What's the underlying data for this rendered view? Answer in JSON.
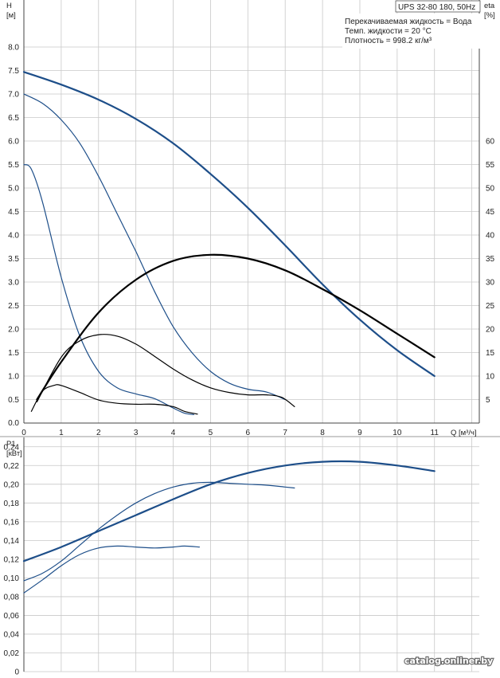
{
  "title": "UPS 32-80 180, 50Hz",
  "info_lines": [
    "Перекачиваемая жидкость = Вода",
    "Темп. жидкости = 20 °C",
    "Плотность = 998.2 кг/м³"
  ],
  "watermark": "catalog.onliner.by",
  "chart_data": [
    {
      "type": "line",
      "title": "UPS 32-80 180, 50Hz",
      "ylabel": "H",
      "yunit": "[м]",
      "y2label": "eta",
      "y2unit": "[%]",
      "xlabel": "Q",
      "xunit": "[м³/ч]",
      "xlim": [
        0,
        12.2
      ],
      "ylim": [
        0,
        8.0
      ],
      "y2lim": [
        0,
        80
      ],
      "grid": true,
      "xticks": [
        "0",
        "1",
        "2",
        "3",
        "4",
        "5",
        "6",
        "7",
        "8",
        "9",
        "10",
        "11"
      ],
      "yticks": [
        "0.0",
        "0.5",
        "1.0",
        "1.5",
        "2.0",
        "2.5",
        "3.0",
        "3.5",
        "4.0",
        "4.5",
        "5.0",
        "5.5",
        "6.0",
        "6.5",
        "7.0",
        "7.5",
        "8.0"
      ],
      "y2ticks": [
        "5",
        "10",
        "15",
        "20",
        "25",
        "30",
        "35",
        "40",
        "45",
        "50",
        "55",
        "60"
      ],
      "series": [
        {
          "axis": "H",
          "color": "#1d4e89",
          "width": 2.2,
          "x": [
            0,
            1,
            2,
            3,
            4,
            5,
            6,
            7,
            8,
            9,
            10,
            11
          ],
          "y": [
            7.47,
            7.2,
            6.88,
            6.47,
            5.95,
            5.3,
            4.58,
            3.78,
            2.95,
            2.2,
            1.55,
            1.0
          ]
        },
        {
          "axis": "H",
          "color": "#1d4e89",
          "width": 1.2,
          "x": [
            0,
            0.5,
            1,
            1.5,
            2,
            2.5,
            3,
            3.5,
            4,
            4.5,
            5,
            5.5,
            6,
            6.5,
            7.0
          ],
          "y": [
            7.0,
            6.8,
            6.45,
            5.95,
            5.25,
            4.45,
            3.65,
            2.8,
            2.05,
            1.5,
            1.1,
            0.85,
            0.72,
            0.66,
            0.5
          ]
        },
        {
          "axis": "H",
          "color": "#1d4e89",
          "width": 1.2,
          "x": [
            0,
            0.2,
            0.5,
            1,
            1.5,
            2,
            2.5,
            3,
            3.5,
            4,
            4.3,
            4.55
          ],
          "y": [
            5.5,
            5.4,
            4.7,
            3.1,
            1.85,
            1.1,
            0.75,
            0.62,
            0.52,
            0.32,
            0.21,
            0.18
          ]
        },
        {
          "axis": "eta",
          "color": "#000000",
          "width": 2.2,
          "x": [
            0.35,
            1,
            2,
            3,
            4,
            5,
            6,
            7,
            8,
            9,
            10,
            11
          ],
          "y": [
            5,
            13,
            23.5,
            30.5,
            34.5,
            35.8,
            35,
            32.5,
            28.5,
            24,
            19,
            14
          ]
        },
        {
          "axis": "eta",
          "color": "#000000",
          "width": 1.2,
          "x": [
            0.35,
            1,
            1.5,
            2,
            2.5,
            3,
            3.5,
            4,
            4.5,
            5,
            5.5,
            6,
            6.5,
            6.9,
            7.25
          ],
          "y": [
            4.5,
            14,
            17.5,
            18.8,
            18.5,
            16.8,
            14.2,
            11.5,
            9.2,
            7.5,
            6.5,
            6.0,
            6.0,
            5.5,
            3.5
          ]
        },
        {
          "axis": "eta",
          "color": "#000000",
          "width": 1.2,
          "x": [
            0.2,
            0.5,
            0.8,
            1,
            1.5,
            2,
            2.5,
            3,
            3.5,
            4,
            4.3,
            4.65
          ],
          "y": [
            2.5,
            6.8,
            8.0,
            8.0,
            6.5,
            4.9,
            4.2,
            4.0,
            4.0,
            3.5,
            2.5,
            1.9
          ]
        }
      ]
    },
    {
      "type": "line",
      "ylabel": "P1",
      "yunit": "[кВт]",
      "xlim": [
        0,
        12.2
      ],
      "ylim": [
        0,
        0.25
      ],
      "grid": true,
      "yticks": [
        "0",
        "0,02",
        "0,04",
        "0,06",
        "0,08",
        "0,10",
        "0,12",
        "0,14",
        "0,16",
        "0,18",
        "0,20",
        "0,22",
        "0,24"
      ],
      "series": [
        {
          "color": "#1d4e89",
          "width": 2.2,
          "x": [
            0,
            1,
            2,
            3,
            4,
            5,
            6,
            7,
            8,
            9,
            10,
            11
          ],
          "y": [
            0.118,
            0.133,
            0.15,
            0.167,
            0.184,
            0.2,
            0.212,
            0.22,
            0.224,
            0.224,
            0.22,
            0.214
          ]
        },
        {
          "color": "#1d4e89",
          "width": 1.2,
          "x": [
            0,
            0.5,
            1,
            1.5,
            2,
            2.5,
            3,
            3.5,
            4,
            4.5,
            5,
            5.5,
            6,
            6.5,
            7,
            7.25
          ],
          "y": [
            0.097,
            0.105,
            0.118,
            0.135,
            0.152,
            0.167,
            0.18,
            0.19,
            0.197,
            0.201,
            0.202,
            0.201,
            0.2,
            0.199,
            0.197,
            0.196
          ]
        },
        {
          "color": "#1d4e89",
          "width": 1.2,
          "x": [
            0,
            0.5,
            1,
            1.5,
            2,
            2.5,
            3,
            3.5,
            4,
            4.3,
            4.7
          ],
          "y": [
            0.084,
            0.098,
            0.113,
            0.125,
            0.132,
            0.134,
            0.133,
            0.132,
            0.133,
            0.134,
            0.133
          ]
        }
      ]
    }
  ]
}
